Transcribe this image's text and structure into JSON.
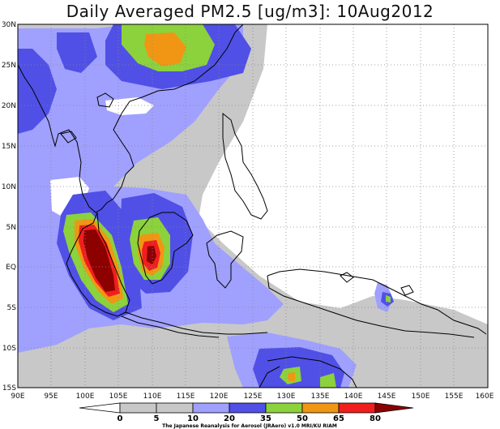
{
  "title": "Daily Averaged PM2.5 [ug/m3]: 10Aug2012",
  "credit": "The Japanese Reanalysis for Aerosol (JRAero) v1.0 MRI/KU RIAM",
  "lat_labels": [
    "30N",
    "25N",
    "20N",
    "15N",
    "10N",
    "5N",
    "EQ",
    "5S",
    "10S",
    "15S"
  ],
  "lon_labels": [
    "90E",
    "95E",
    "100E",
    "105E",
    "110E",
    "115E",
    "120E",
    "125E",
    "130E",
    "135E",
    "140E",
    "145E",
    "150E",
    "155E",
    "160E"
  ],
  "colorbar": {
    "levels": [
      "0",
      "5",
      "10",
      "20",
      "35",
      "50",
      "65",
      "80"
    ],
    "colors": [
      "#ffffff",
      "#c8c8c8",
      "#a0a0ff",
      "#5050e6",
      "#8cd23c",
      "#f09614",
      "#f01e1e",
      "#8c0000"
    ]
  }
}
